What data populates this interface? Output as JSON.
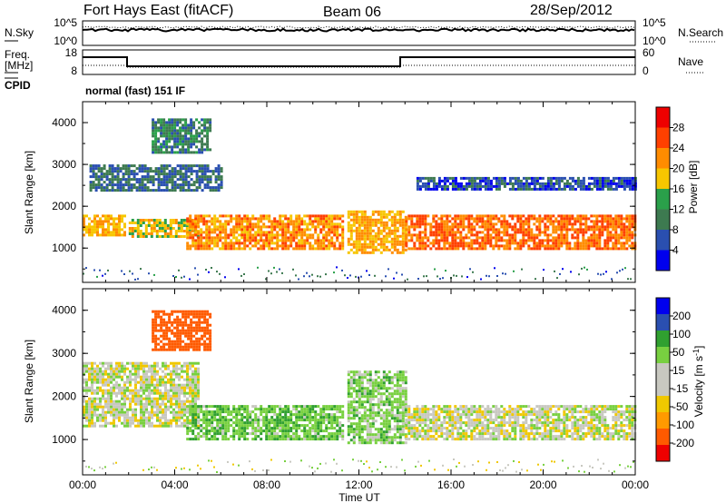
{
  "header": {
    "station": "Fort Hays East (fitACF)",
    "beam": "Beam 06",
    "date": "28/Sep/2012"
  },
  "status_panels": {
    "left_labels": [
      "N.Sky",
      "Freq.",
      "[MHz]",
      "CPID"
    ],
    "right_labels": [
      "N.Search",
      "Nave"
    ],
    "noise_ticks_left": [
      "10^5",
      "10^0"
    ],
    "noise_ticks_right": [
      "10^5",
      "10^0"
    ],
    "freq_ticks": [
      "18",
      "8"
    ],
    "nave_ticks": [
      "60",
      "0"
    ],
    "cpid_text": "normal (fast) 151 IF"
  },
  "colors": {
    "power": [
      "#0000ee",
      "#2a4fb0",
      "#3d7a50",
      "#2aa04a",
      "#f7c600",
      "#ff8c00",
      "#ff4000",
      "#ee0000"
    ],
    "velocity": [
      "#ee0000",
      "#ff5a00",
      "#ff9a00",
      "#f0c800",
      "#c8c8c0",
      "#c8c8c0",
      "#78d040",
      "#30a030",
      "#2a4fb0",
      "#0000ee"
    ]
  },
  "chart_data": [
    {
      "type": "heatmap",
      "title": "",
      "xlabel": "Time UT",
      "ylabel": "Slant Range [km]",
      "x_ticks": [
        "00:00",
        "04:00",
        "08:00",
        "12:00",
        "16:00",
        "20:00",
        "00:00"
      ],
      "x_range_hours": [
        0,
        24
      ],
      "y_ticks": [
        "1000",
        "2000",
        "3000",
        "4000"
      ],
      "ylim_km": [
        180,
        4500
      ],
      "colorbar": {
        "label": "Power [dB]",
        "ticks": [
          "28",
          "24",
          "20",
          "16",
          "12",
          "8",
          "4"
        ],
        "range": [
          0,
          32
        ]
      },
      "regions": [
        {
          "t0": 0.0,
          "t1": 1.8,
          "r0": 1300,
          "r1": 1800,
          "value": 20
        },
        {
          "t0": 2.0,
          "t1": 5.0,
          "r0": 1300,
          "r1": 1700,
          "value": 18
        },
        {
          "t0": 4.5,
          "t1": 11.3,
          "r0": 1000,
          "r1": 1800,
          "value": 22
        },
        {
          "t0": 11.5,
          "t1": 14.0,
          "r0": 900,
          "r1": 1900,
          "value": 20
        },
        {
          "t0": 14.0,
          "t1": 24.0,
          "r0": 1000,
          "r1": 1800,
          "value": 24
        },
        {
          "t0": 0.3,
          "t1": 6.0,
          "r0": 2400,
          "r1": 3000,
          "value": 8
        },
        {
          "t0": 3.0,
          "t1": 5.5,
          "r0": 3300,
          "r1": 4100,
          "value": 10
        },
        {
          "t0": 14.5,
          "t1": 24.0,
          "r0": 2400,
          "r1": 2700,
          "value": 6
        }
      ]
    },
    {
      "type": "heatmap",
      "title": "",
      "xlabel": "Time UT",
      "ylabel": "Slant Range [km]",
      "x_ticks": [
        "00:00",
        "04:00",
        "08:00",
        "12:00",
        "16:00",
        "20:00",
        "00:00"
      ],
      "x_range_hours": [
        0,
        24
      ],
      "y_ticks": [
        "1000",
        "2000",
        "3000",
        "4000"
      ],
      "ylim_km": [
        180,
        4500
      ],
      "colorbar": {
        "label": "Velocity [m s-1]",
        "ticks": [
          "200",
          "100",
          "50",
          "15",
          "-15",
          "-50",
          "-100",
          "-200"
        ],
        "range": [
          -250,
          250
        ]
      },
      "regions": [
        {
          "t0": 0.0,
          "t1": 5.0,
          "r0": 1300,
          "r1": 2800,
          "value": 0
        },
        {
          "t0": 4.5,
          "t1": 11.3,
          "r0": 1000,
          "r1": 1800,
          "value": 40
        },
        {
          "t0": 11.5,
          "t1": 14.0,
          "r0": 900,
          "r1": 2600,
          "value": 30
        },
        {
          "t0": 14.0,
          "t1": 24.0,
          "r0": 1000,
          "r1": 1800,
          "value": 0
        },
        {
          "t0": 3.0,
          "t1": 5.5,
          "r0": 3100,
          "r1": 4000,
          "value": -150
        }
      ]
    }
  ]
}
